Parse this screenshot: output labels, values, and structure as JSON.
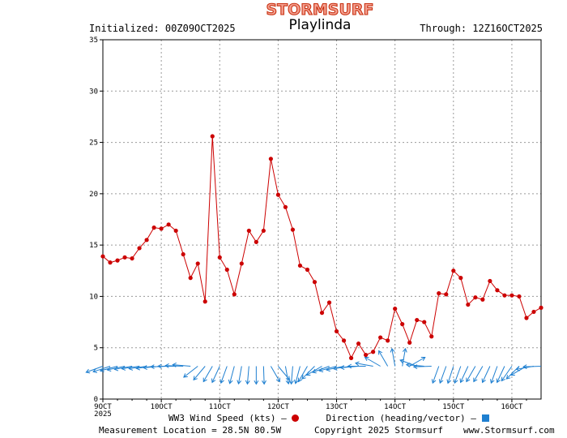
{
  "header": {
    "logo_text": "STORMSURF",
    "title": "Playlinda",
    "initialized": "Initialized: 00Z09OCT2025",
    "through": "Through: 12Z16OCT2025"
  },
  "legend": {
    "speed_label": "WW3 Wind Speed (kts) —",
    "direction_label": "Direction (heading/vector) —"
  },
  "footer": {
    "location": "Measurement Location = 28.5N 80.5W",
    "copyright": "Copyright 2025 Stormsurf",
    "website": "www.Stormsurf.com"
  },
  "colors": {
    "speed_line": "#cc0000",
    "direction_arrows": "#1e7fd0",
    "grid": "#9a9a9a",
    "logo_fill": "#f4a090",
    "logo_stroke": "#c83010"
  },
  "chart_data": {
    "type": "line",
    "title": "Playlinda",
    "ylabel": "WW3 Wind Speed (kts)",
    "ylim": [
      0,
      35
    ],
    "yticks": [
      0,
      5,
      10,
      15,
      20,
      25,
      30,
      35
    ],
    "x_unit": "hours since 00Z 09OCT2025",
    "xlim": [
      0,
      180
    ],
    "x_ticks": [
      {
        "hour": 0,
        "label": "9OCT",
        "sublabel": "2025"
      },
      {
        "hour": 24,
        "label": "10OCT"
      },
      {
        "hour": 48,
        "label": "11OCT"
      },
      {
        "hour": 72,
        "label": "12OCT"
      },
      {
        "hour": 96,
        "label": "13OCT"
      },
      {
        "hour": 120,
        "label": "14OCT"
      },
      {
        "hour": 144,
        "label": "15OCT"
      },
      {
        "hour": 168,
        "label": "16OCT"
      }
    ],
    "interval_hours": 3,
    "series": [
      {
        "name": "WW3 Wind Speed (kts)",
        "values": [
          13.9,
          13.3,
          13.5,
          13.8,
          13.7,
          14.7,
          15.5,
          16.7,
          16.6,
          17.0,
          16.4,
          14.1,
          11.8,
          13.2,
          9.5,
          25.6,
          13.8,
          12.6,
          10.2,
          13.2,
          16.4,
          15.3,
          16.4,
          23.4,
          19.9,
          18.7,
          16.5,
          13.0,
          12.6,
          11.4,
          8.4,
          9.4,
          6.6,
          5.7,
          4.0,
          5.4,
          4.3,
          4.6,
          6.0,
          5.7,
          8.8,
          7.3,
          5.5,
          7.7,
          7.5,
          6.1,
          10.3,
          10.2,
          12.5,
          11.8,
          9.2,
          9.9,
          9.7,
          11.5,
          10.6,
          10.1,
          10.1,
          10.0,
          7.9,
          8.5,
          8.9
        ]
      },
      {
        "name": "Direction (heading/vector)",
        "headings_deg": [
          250,
          252,
          255,
          258,
          260,
          262,
          262,
          263,
          265,
          268,
          270,
          272,
          275,
          232,
          220,
          210,
          205,
          200,
          195,
          190,
          185,
          180,
          178,
          150,
          140,
          170,
          185,
          195,
          210,
          225,
          240,
          250,
          255,
          258,
          262,
          265,
          270,
          280,
          300,
          330,
          350,
          10,
          60,
          290,
          275,
          268,
          200,
          200,
          198,
          200,
          205,
          210,
          210,
          205,
          200,
          205,
          215,
          225,
          240,
          260,
          268
        ]
      }
    ]
  }
}
